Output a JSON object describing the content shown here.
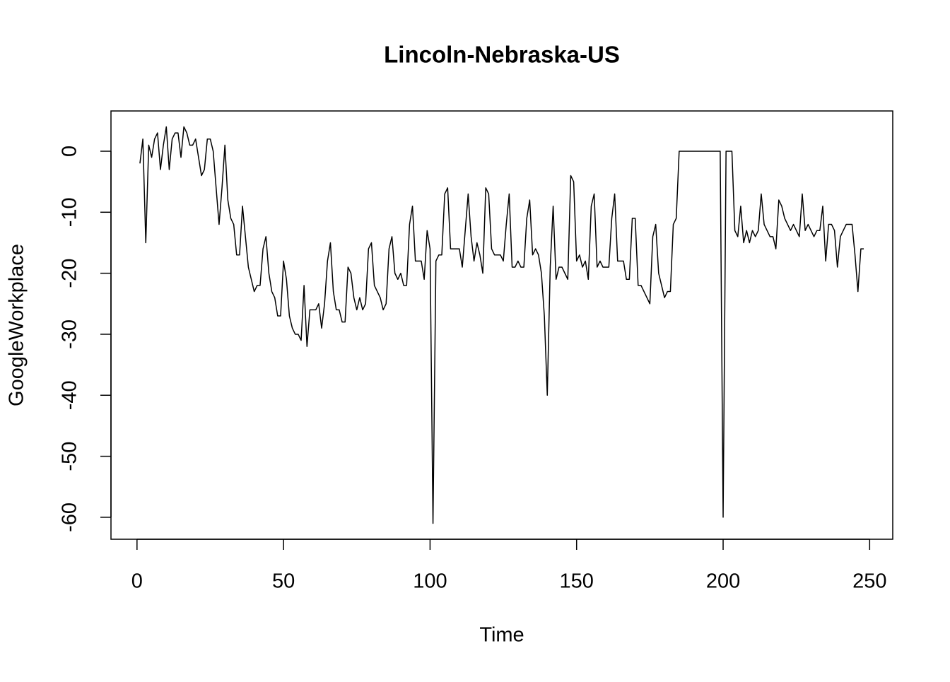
{
  "chart_data": {
    "type": "line",
    "title": "Lincoln-Nebraska-US",
    "x_label": "Time",
    "y_label": "GoogleWorkplace",
    "x": [
      1,
      2,
      3,
      4,
      5,
      6,
      7,
      8,
      9,
      10,
      11,
      12,
      13,
      14,
      15,
      16,
      17,
      18,
      19,
      20,
      21,
      22,
      23,
      24,
      25,
      26,
      27,
      28,
      29,
      30,
      31,
      32,
      33,
      34,
      35,
      36,
      37,
      38,
      39,
      40,
      41,
      42,
      43,
      44,
      45,
      46,
      47,
      48,
      49,
      50,
      51,
      52,
      53,
      54,
      55,
      56,
      57,
      58,
      59,
      60,
      61,
      62,
      63,
      64,
      65,
      66,
      67,
      68,
      69,
      70,
      71,
      72,
      73,
      74,
      75,
      76,
      77,
      78,
      79,
      80,
      81,
      82,
      83,
      84,
      85,
      86,
      87,
      88,
      89,
      90,
      91,
      92,
      93,
      94,
      95,
      96,
      97,
      98,
      99,
      100,
      101,
      102,
      103,
      104,
      105,
      106,
      107,
      108,
      109,
      110,
      111,
      112,
      113,
      114,
      115,
      116,
      117,
      118,
      119,
      120,
      121,
      122,
      123,
      124,
      125,
      126,
      127,
      128,
      129,
      130,
      131,
      132,
      133,
      134,
      135,
      136,
      137,
      138,
      139,
      140,
      141,
      142,
      143,
      144,
      145,
      146,
      147,
      148,
      149,
      150,
      151,
      152,
      153,
      154,
      155,
      156,
      157,
      158,
      159,
      160,
      161,
      162,
      163,
      164,
      165,
      166,
      167,
      168,
      169,
      170,
      171,
      172,
      173,
      174,
      175,
      176,
      177,
      178,
      179,
      180,
      181,
      182,
      183,
      184,
      185,
      186,
      187,
      188,
      189,
      190,
      191,
      192,
      193,
      194,
      195,
      196,
      197,
      198,
      199,
      200,
      201,
      202,
      203,
      204,
      205,
      206,
      207,
      208,
      209,
      210,
      211,
      212,
      213,
      214,
      215,
      216,
      217,
      218,
      219,
      220,
      221,
      222,
      223,
      224,
      225,
      226,
      227,
      228,
      229,
      230,
      231,
      232,
      233,
      234,
      235,
      236,
      237,
      238,
      239,
      240,
      241,
      242,
      243,
      244,
      245,
      246,
      247,
      248
    ],
    "series": [
      {
        "name": "GoogleWorkplace",
        "color": "#000000",
        "values": [
          -2,
          2,
          -15,
          1,
          -1,
          2,
          3,
          -3,
          1,
          4,
          -3,
          2,
          3,
          3,
          -1,
          4,
          3,
          1,
          1,
          2,
          -1,
          -4,
          -3,
          2,
          2,
          0,
          -6,
          -12,
          -6,
          1,
          -8,
          -11,
          -12,
          -17,
          -17,
          -9,
          -14,
          -19,
          -21,
          -23,
          -22,
          -22,
          -16,
          -14,
          -20,
          -23,
          -24,
          -27,
          -27,
          -18,
          -21,
          -27,
          -29,
          -30,
          -30,
          -31,
          -22,
          -32,
          -26,
          -26,
          -26,
          -25,
          -29,
          -25,
          -18,
          -15,
          -23,
          -26,
          -26,
          -28,
          -28,
          -19,
          -20,
          -24,
          -26,
          -24,
          -26,
          -25,
          -16,
          -15,
          -22,
          -23,
          -24,
          -26,
          -25,
          -16,
          -14,
          -20,
          -21,
          -20,
          -22,
          -22,
          -12,
          -9,
          -18,
          -18,
          -18,
          -21,
          -13,
          -16,
          -61,
          -18,
          -17,
          -17,
          -7,
          -6,
          -16,
          -16,
          -16,
          -16,
          -19,
          -13,
          -7,
          -14,
          -18,
          -15,
          -17,
          -20,
          -6,
          -7,
          -16,
          -17,
          -17,
          -17,
          -18,
          -12,
          -7,
          -19,
          -19,
          -18,
          -19,
          -19,
          -11,
          -8,
          -17,
          -16,
          -17,
          -20,
          -27,
          -40,
          -19,
          -9,
          -21,
          -19,
          -19,
          -20,
          -21,
          -4,
          -5,
          -18,
          -17,
          -19,
          -18,
          -21,
          -9,
          -7,
          -19,
          -18,
          -19,
          -19,
          -19,
          -11,
          -7,
          -18,
          -18,
          -18,
          -21,
          -21,
          -11,
          -11,
          -22,
          -22,
          -23,
          -24,
          -25,
          -14,
          -12,
          -20,
          -22,
          -24,
          -23,
          -23,
          -12,
          -11,
          0,
          0,
          0,
          0,
          0,
          0,
          0,
          0,
          0,
          0,
          0,
          0,
          0,
          0,
          0,
          -60,
          0,
          0,
          0,
          -13,
          -14,
          -9,
          -15,
          -13,
          -15,
          -13,
          -14,
          -13,
          -7,
          -12,
          -13,
          -14,
          -14,
          -16,
          -8,
          -9,
          -11,
          -12,
          -13,
          -12,
          -13,
          -14,
          -7,
          -13,
          -12,
          -13,
          -14,
          -13,
          -13,
          -9,
          -18,
          -12,
          -12,
          -13,
          -19,
          -14,
          -13,
          -12,
          -12,
          -12,
          -17,
          -23,
          -16,
          -16
        ]
      }
    ],
    "xlim": [
      -8.88,
      257.88
    ],
    "ylim": [
      -63.6,
      6.6
    ],
    "xticks": [
      0,
      50,
      100,
      150,
      200,
      250
    ],
    "yticks": [
      0,
      -10,
      -20,
      -30,
      -40,
      -50,
      -60
    ]
  }
}
